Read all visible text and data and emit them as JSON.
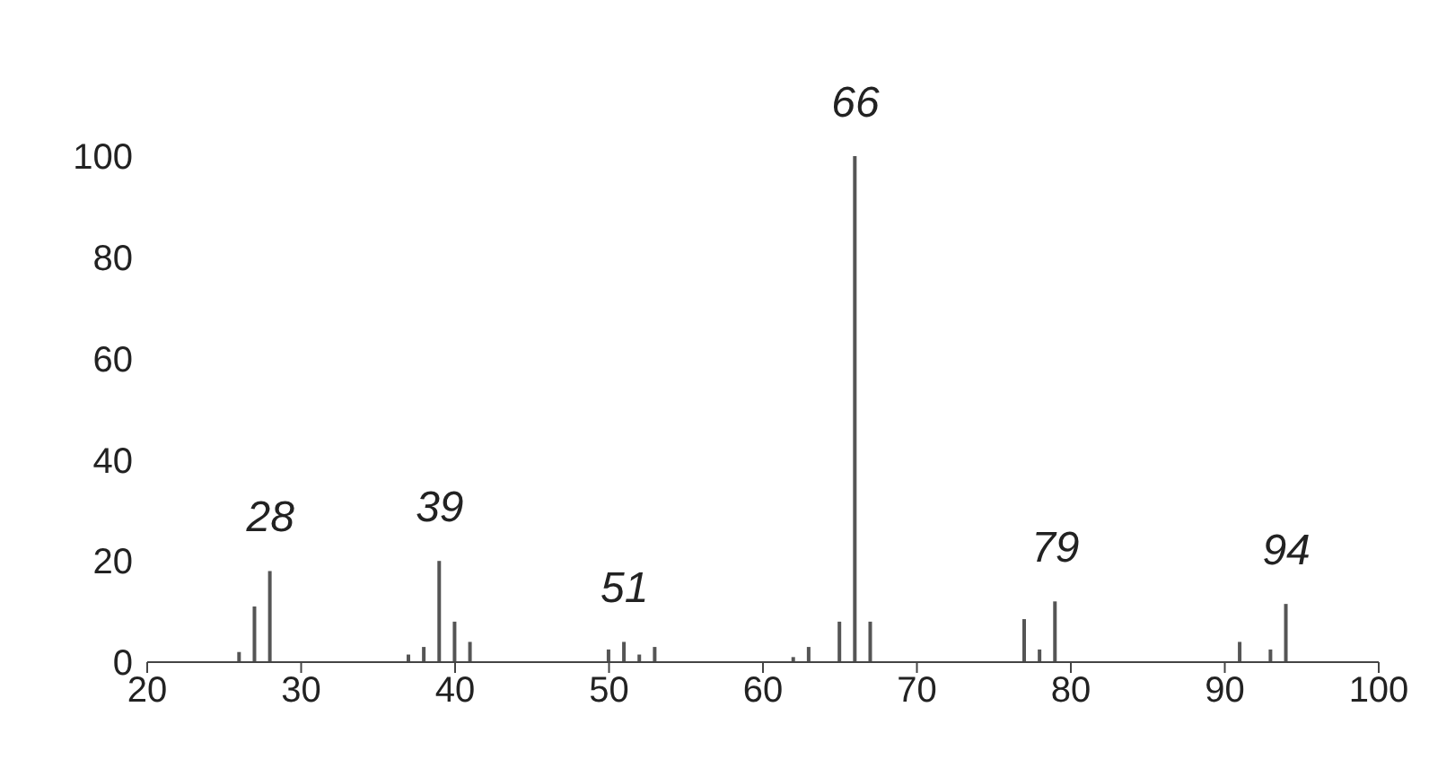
{
  "chart_data": {
    "type": "bar",
    "color": "#555555",
    "x": [
      26,
      27,
      28,
      37,
      38,
      39,
      40,
      41,
      50,
      51,
      52,
      53,
      62,
      63,
      65,
      66,
      67,
      77,
      78,
      79,
      91,
      93,
      94
    ],
    "values": [
      2,
      11,
      18,
      1.5,
      3,
      20,
      8,
      4,
      2.5,
      4,
      1.5,
      3,
      1,
      3,
      8,
      100,
      8,
      8.5,
      2.5,
      12,
      4,
      2.5,
      11.5
    ],
    "xlim": [
      20,
      100
    ],
    "xticks": [
      20,
      30,
      40,
      50,
      60,
      70,
      80,
      90,
      100
    ],
    "ylim": [
      0,
      100
    ],
    "yticks": [
      0,
      20,
      40,
      60,
      80,
      100
    ],
    "annotations": [
      {
        "text": "28",
        "x": 28,
        "y": 18
      },
      {
        "text": "39",
        "x": 39,
        "y": 20
      },
      {
        "text": "51",
        "x": 51,
        "y": 4
      },
      {
        "text": "66",
        "x": 66,
        "y": 100
      },
      {
        "text": "79",
        "x": 79,
        "y": 12
      },
      {
        "text": "94",
        "x": 94,
        "y": 11.5
      }
    ]
  }
}
